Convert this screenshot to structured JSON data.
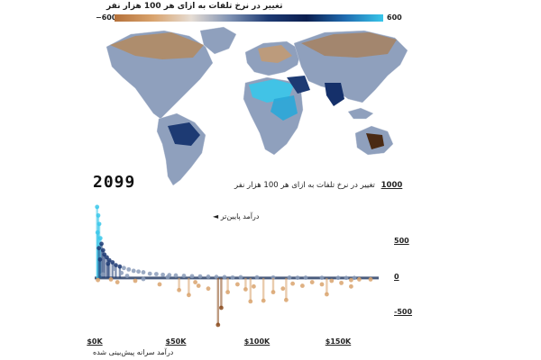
{
  "map": {
    "legend_title": "تغییر در نرخ تلفات به ازای هر 100 هزار نفر",
    "legend_min_label": "−600",
    "legend_max_label": "600",
    "gradient_colors": [
      "#b5713a",
      "#d9a36d",
      "#e6ddd4",
      "#7f92b3",
      "#1d3a73",
      "#0b1e4f",
      "#1f6bb0",
      "#38c6ea"
    ]
  },
  "year_label": "2099",
  "chart_data": {
    "type": "scatter",
    "title": "تغییر در نرخ تلفات به ازای هر 100 هزار نفر",
    "title_max_label": "1000",
    "xlabel": "درآمد سرانه پیش‌بینی شده",
    "xlim": [
      0,
      175000
    ],
    "ylim": [
      -800,
      1100
    ],
    "x_ticks": [
      0,
      50000,
      100000,
      150000
    ],
    "x_tick_labels": [
      "$0K",
      "$50K",
      "$100K",
      "$150K"
    ],
    "y_ticks": [
      500,
      0,
      -500
    ],
    "y_tick_labels": [
      "500",
      "0",
      "-500"
    ],
    "annotation": "درآمد پایین‌تر ◄",
    "grid": false,
    "colors": {
      "high_positive": "#3cc8ea",
      "positive": "#1d3a73",
      "neutral": "#8a9bb8",
      "negative": "#d9a36d",
      "very_negative": "#8a4a1c"
    },
    "series": [
      {
        "points": [
          [
            1500,
            1000
          ],
          [
            2200,
            880
          ],
          [
            2800,
            760
          ],
          [
            1800,
            640
          ],
          [
            3500,
            560
          ],
          [
            4200,
            480
          ],
          [
            2600,
            420
          ],
          [
            5200,
            390
          ],
          [
            6000,
            330
          ],
          [
            7500,
            290
          ],
          [
            3300,
            260
          ],
          [
            9000,
            250
          ],
          [
            11000,
            220
          ],
          [
            8200,
            200
          ],
          [
            13000,
            180
          ],
          [
            15500,
            160
          ],
          [
            18000,
            140
          ],
          [
            12000,
            130
          ],
          [
            21000,
            120
          ],
          [
            24000,
            100
          ],
          [
            27000,
            90
          ],
          [
            30000,
            80
          ],
          [
            16500,
            70
          ],
          [
            34000,
            60
          ],
          [
            38000,
            55
          ],
          [
            42000,
            45
          ],
          [
            46000,
            40
          ],
          [
            50000,
            35
          ],
          [
            55000,
            30
          ],
          [
            60000,
            25
          ],
          [
            65000,
            22
          ],
          [
            70000,
            18
          ],
          [
            75000,
            15
          ],
          [
            80000,
            12
          ],
          [
            90000,
            10
          ],
          [
            100000,
            8
          ],
          [
            110000,
            6
          ],
          [
            120000,
            5
          ],
          [
            130000,
            4
          ],
          [
            140000,
            3
          ],
          [
            150000,
            2
          ],
          [
            160000,
            1
          ],
          [
            5000,
            50
          ],
          [
            20000,
            30
          ],
          [
            45000,
            12
          ],
          [
            85000,
            6
          ],
          [
            125000,
            3
          ],
          [
            155000,
            1
          ],
          [
            10000,
            -20
          ],
          [
            25000,
            -40
          ],
          [
            40000,
            -90
          ],
          [
            52000,
            -170
          ],
          [
            58000,
            -240
          ],
          [
            64000,
            -110
          ],
          [
            70000,
            -150
          ],
          [
            76000,
            -660
          ],
          [
            78000,
            -420
          ],
          [
            82000,
            -200
          ],
          [
            88000,
            -90
          ],
          [
            93000,
            -160
          ],
          [
            98000,
            -120
          ],
          [
            104000,
            -320
          ],
          [
            110000,
            -200
          ],
          [
            116000,
            -150
          ],
          [
            122000,
            -80
          ],
          [
            128000,
            -110
          ],
          [
            134000,
            -60
          ],
          [
            140000,
            -90
          ],
          [
            146000,
            -40
          ],
          [
            152000,
            -70
          ],
          [
            158000,
            -30
          ],
          [
            163000,
            -20
          ],
          [
            2000,
            -30
          ],
          [
            14000,
            -60
          ],
          [
            30000,
            -15
          ],
          [
            62000,
            -60
          ],
          [
            96000,
            -330
          ],
          [
            118000,
            -310
          ],
          [
            143000,
            -230
          ],
          [
            158000,
            -120
          ],
          [
            170000,
            -20
          ]
        ]
      }
    ]
  }
}
